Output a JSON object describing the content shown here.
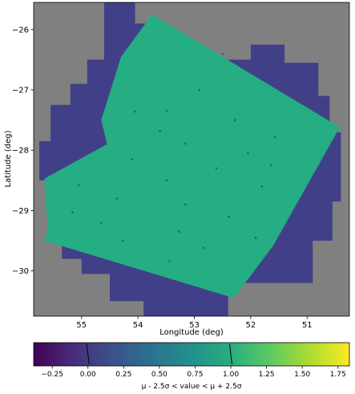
{
  "chart_data": [
    {
      "type": "heatmap",
      "title": "",
      "xlabel": "Longitude (deg)",
      "ylabel": "Latitude (deg)",
      "xlim": [
        55.85,
        50.25
      ],
      "ylim": [
        -30.75,
        -25.55
      ],
      "x_ticks": [
        {
          "value": 55,
          "label": "55"
        },
        {
          "value": 54,
          "label": "54"
        },
        {
          "value": 53,
          "label": "53"
        },
        {
          "value": 52,
          "label": "52"
        },
        {
          "value": 51,
          "label": "51"
        }
      ],
      "y_ticks": [
        {
          "value": -26,
          "label": "−26"
        },
        {
          "value": -27,
          "label": "−27"
        },
        {
          "value": -28,
          "label": "−28"
        },
        {
          "value": -29,
          "label": "−29"
        },
        {
          "value": -30,
          "label": "−30"
        }
      ],
      "grid": false,
      "colors": {
        "background": "#808080",
        "coverage_low": "#423f89",
        "coverage_main": "#25ad83",
        "source": "#3b4f9c"
      },
      "regions": [
        {
          "name": "outer coverage (value ≈ 0)",
          "polygon": [
            [
              54.6,
              -25.55
            ],
            [
              54.05,
              -25.55
            ],
            [
              54.05,
              -25.9
            ],
            [
              53.7,
              -25.9
            ],
            [
              53.7,
              -26.25
            ],
            [
              53.15,
              -26.25
            ],
            [
              53.15,
              -26.5
            ],
            [
              52.0,
              -26.5
            ],
            [
              52.0,
              -26.25
            ],
            [
              51.4,
              -26.25
            ],
            [
              51.4,
              -26.55
            ],
            [
              50.8,
              -26.55
            ],
            [
              50.8,
              -27.1
            ],
            [
              50.6,
              -27.1
            ],
            [
              50.6,
              -27.7
            ],
            [
              50.4,
              -27.7
            ],
            [
              50.4,
              -28.85
            ],
            [
              50.55,
              -28.85
            ],
            [
              50.55,
              -29.5
            ],
            [
              50.9,
              -29.5
            ],
            [
              50.9,
              -30.2
            ],
            [
              52.4,
              -30.2
            ],
            [
              52.4,
              -30.45
            ],
            [
              52.4,
              -30.75
            ],
            [
              53.9,
              -30.75
            ],
            [
              53.9,
              -30.5
            ],
            [
              54.5,
              -30.5
            ],
            [
              54.5,
              -30.05
            ],
            [
              55.0,
              -30.05
            ],
            [
              55.0,
              -29.8
            ],
            [
              55.35,
              -29.8
            ],
            [
              55.35,
              -29.1
            ],
            [
              55.55,
              -29.1
            ],
            [
              55.55,
              -28.5
            ],
            [
              55.75,
              -28.5
            ],
            [
              55.75,
              -27.85
            ],
            [
              55.55,
              -27.85
            ],
            [
              55.55,
              -27.25
            ],
            [
              55.2,
              -27.25
            ],
            [
              55.2,
              -26.9
            ],
            [
              54.9,
              -26.9
            ],
            [
              54.9,
              -26.5
            ],
            [
              54.6,
              -26.5
            ]
          ]
        },
        {
          "name": "main coverage (value ≈ 1)",
          "polygon": [
            [
              53.75,
              -25.75
            ],
            [
              50.42,
              -27.62
            ],
            [
              51.6,
              -29.58
            ],
            [
              52.3,
              -30.45
            ],
            [
              55.66,
              -29.5
            ],
            [
              55.6,
              -29.32
            ],
            [
              55.66,
              -28.47
            ],
            [
              54.55,
              -27.9
            ],
            [
              54.65,
              -27.5
            ],
            [
              54.3,
              -26.45
            ]
          ]
        }
      ],
      "points": [
        {
          "lon": 52.5,
          "lat": -26.4
        },
        {
          "lon": 52.91,
          "lat": -27.0
        },
        {
          "lon": 54.05,
          "lat": -27.36
        },
        {
          "lon": 53.49,
          "lat": -27.35
        },
        {
          "lon": 52.28,
          "lat": -27.5
        },
        {
          "lon": 53.61,
          "lat": -27.68
        },
        {
          "lon": 51.57,
          "lat": -27.78
        },
        {
          "lon": 53.16,
          "lat": -27.89
        },
        {
          "lon": 52.05,
          "lat": -28.05
        },
        {
          "lon": 54.1,
          "lat": -28.15
        },
        {
          "lon": 52.61,
          "lat": -28.3
        },
        {
          "lon": 55.05,
          "lat": -28.58
        },
        {
          "lon": 53.49,
          "lat": -28.5
        },
        {
          "lon": 51.8,
          "lat": -28.6
        },
        {
          "lon": 54.37,
          "lat": -28.8
        },
        {
          "lon": 53.16,
          "lat": -28.9
        },
        {
          "lon": 52.39,
          "lat": -29.1
        },
        {
          "lon": 55.16,
          "lat": -29.03
        },
        {
          "lon": 53.27,
          "lat": -29.35
        },
        {
          "lon": 54.27,
          "lat": -29.5
        },
        {
          "lon": 51.91,
          "lat": -29.45
        },
        {
          "lon": 52.84,
          "lat": -29.62
        },
        {
          "lon": 53.44,
          "lat": -29.84
        },
        {
          "lon": 54.65,
          "lat": -29.2
        },
        {
          "lon": 51.64,
          "lat": -28.25
        }
      ],
      "colorbar": {
        "label": "μ - 2.5σ < value < μ + 2.5σ",
        "colormap": "viridis",
        "range": [
          -0.38,
          1.83
        ],
        "ticks": [
          {
            "value": -0.25,
            "label": "−0.25"
          },
          {
            "value": 0.0,
            "label": "0.00"
          },
          {
            "value": 0.25,
            "label": "0.25"
          },
          {
            "value": 0.5,
            "label": "0.50"
          },
          {
            "value": 0.75,
            "label": "0.75"
          },
          {
            "value": 1.0,
            "label": "1.00"
          },
          {
            "value": 1.25,
            "label": "1.25"
          },
          {
            "value": 1.5,
            "label": "1.50"
          },
          {
            "value": 1.75,
            "label": "1.75"
          }
        ],
        "markers": [
          0.0,
          1.0
        ]
      }
    }
  ]
}
